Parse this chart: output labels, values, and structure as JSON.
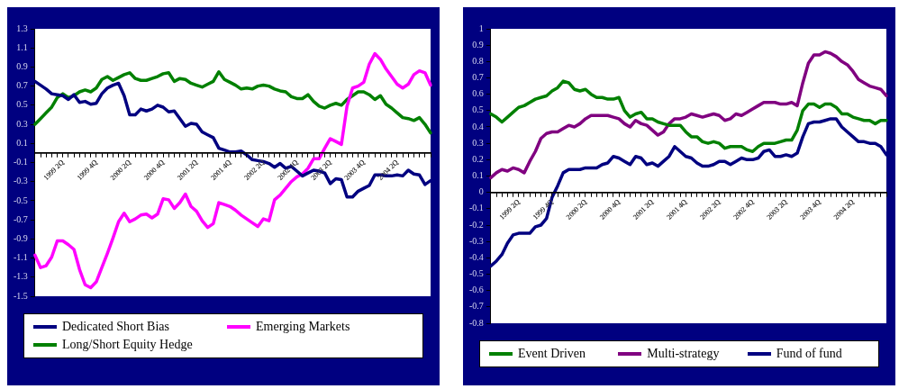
{
  "chart_data": [
    {
      "type": "line",
      "categories": [
        null,
        null,
        null,
        null,
        null,
        "1999 2Q",
        null,
        null,
        null,
        null,
        null,
        "1999 4Q",
        null,
        null,
        null,
        null,
        null,
        "2000 2Q",
        null,
        null,
        null,
        null,
        null,
        "2000 4Q",
        null,
        null,
        null,
        null,
        null,
        "2001 2Q",
        null,
        null,
        null,
        null,
        null,
        "2001 4Q",
        null,
        null,
        null,
        null,
        null,
        "2002 2Q",
        null,
        null,
        null,
        null,
        null,
        "2002 4Q",
        null,
        null,
        null,
        null,
        null,
        "2003 2Q",
        null,
        null,
        null,
        null,
        null,
        "2003 4Q",
        null,
        null,
        null,
        null,
        null,
        "2004 2Q",
        null,
        null,
        null,
        null,
        null,
        null
      ],
      "series": [
        {
          "name": "Dedicated Short Bias",
          "color": "#000080",
          "values": [
            0.75,
            0.71,
            0.67,
            0.62,
            0.61,
            0.6,
            0.56,
            0.61,
            0.53,
            0.54,
            0.51,
            0.52,
            0.62,
            0.68,
            0.71,
            0.73,
            0.6,
            0.4,
            0.4,
            0.46,
            0.44,
            0.46,
            0.5,
            0.48,
            0.43,
            0.44,
            0.36,
            0.28,
            0.31,
            0.3,
            0.22,
            0.19,
            0.16,
            0.05,
            0.03,
            0.01,
            0.01,
            0.02,
            -0.02,
            -0.07,
            -0.08,
            -0.09,
            -0.11,
            -0.15,
            -0.11,
            -0.16,
            -0.14,
            -0.19,
            -0.24,
            -0.21,
            -0.18,
            -0.19,
            -0.21,
            -0.32,
            -0.27,
            -0.28,
            -0.46,
            -0.46,
            -0.4,
            -0.37,
            -0.34,
            -0.23,
            -0.23,
            -0.24,
            -0.24,
            -0.23,
            -0.24,
            -0.18,
            -0.22,
            -0.23,
            -0.33,
            -0.29
          ]
        },
        {
          "name": "Emerging Markets",
          "color": "#ff00ff",
          "values": [
            -1.07,
            -1.2,
            -1.18,
            -1.09,
            -0.92,
            -0.92,
            -0.96,
            -1.01,
            -1.22,
            -1.38,
            -1.41,
            -1.35,
            -1.2,
            -1.05,
            -0.89,
            -0.72,
            -0.63,
            -0.72,
            -0.69,
            -0.65,
            -0.64,
            -0.68,
            -0.64,
            -0.48,
            -0.49,
            -0.58,
            -0.52,
            -0.43,
            -0.56,
            -0.61,
            -0.71,
            -0.78,
            -0.74,
            -0.52,
            -0.54,
            -0.56,
            -0.6,
            -0.65,
            -0.69,
            -0.73,
            -0.77,
            -0.69,
            -0.71,
            -0.49,
            -0.44,
            -0.37,
            -0.3,
            -0.25,
            -0.22,
            -0.16,
            -0.06,
            -0.06,
            0.05,
            0.15,
            0.12,
            0.09,
            0.49,
            0.68,
            0.7,
            0.74,
            0.93,
            1.04,
            0.98,
            0.88,
            0.8,
            0.72,
            0.68,
            0.72,
            0.82,
            0.86,
            0.84,
            0.71
          ]
        },
        {
          "name": "Long/Short Equity Hedge",
          "color": "#008000",
          "values": [
            0.3,
            0.36,
            0.42,
            0.48,
            0.58,
            0.62,
            0.58,
            0.6,
            0.64,
            0.66,
            0.64,
            0.68,
            0.77,
            0.8,
            0.76,
            0.79,
            0.82,
            0.84,
            0.78,
            0.76,
            0.76,
            0.78,
            0.8,
            0.83,
            0.84,
            0.75,
            0.78,
            0.77,
            0.73,
            0.71,
            0.69,
            0.72,
            0.75,
            0.85,
            0.77,
            0.74,
            0.71,
            0.67,
            0.68,
            0.67,
            0.7,
            0.71,
            0.7,
            0.67,
            0.65,
            0.64,
            0.59,
            0.57,
            0.57,
            0.61,
            0.54,
            0.49,
            0.47,
            0.5,
            0.52,
            0.5,
            0.56,
            0.6,
            0.64,
            0.64,
            0.61,
            0.56,
            0.6,
            0.51,
            0.47,
            0.42,
            0.37,
            0.36,
            0.34,
            0.37,
            0.3,
            0.21
          ]
        }
      ],
      "ylim": [
        -1.5,
        1.3
      ],
      "yticks": [
        -1.5,
        -1.3,
        -1.1,
        -0.9,
        -0.7,
        -0.5,
        -0.3,
        -0.1,
        0.1,
        0.3,
        0.5,
        0.7,
        0.9,
        1.1,
        1.3
      ],
      "legend": "bottom",
      "marker": "none"
    },
    {
      "type": "line",
      "categories": [
        null,
        null,
        null,
        null,
        null,
        "1999 2Q",
        null,
        null,
        null,
        null,
        null,
        "1999 4Q",
        null,
        null,
        null,
        null,
        null,
        "2000 2Q",
        null,
        null,
        null,
        null,
        null,
        "2000 4Q",
        null,
        null,
        null,
        null,
        null,
        "2001 2Q",
        null,
        null,
        null,
        null,
        null,
        "2001 4Q",
        null,
        null,
        null,
        null,
        null,
        "2002 2Q",
        null,
        null,
        null,
        null,
        null,
        "2002 4Q",
        null,
        null,
        null,
        null,
        null,
        "2003 2Q",
        null,
        null,
        null,
        null,
        null,
        "2003 4Q",
        null,
        null,
        null,
        null,
        null,
        "2004 2Q",
        null,
        null,
        null,
        null,
        null,
        null
      ],
      "series": [
        {
          "name": "Event Driven",
          "color": "#008000",
          "values": [
            0.48,
            0.46,
            0.43,
            0.46,
            0.49,
            0.52,
            0.53,
            0.55,
            0.57,
            0.58,
            0.59,
            0.62,
            0.64,
            0.68,
            0.67,
            0.63,
            0.62,
            0.63,
            0.6,
            0.58,
            0.58,
            0.57,
            0.57,
            0.58,
            0.5,
            0.46,
            0.48,
            0.49,
            0.45,
            0.45,
            0.43,
            0.42,
            0.41,
            0.41,
            0.41,
            0.37,
            0.34,
            0.34,
            0.31,
            0.3,
            0.31,
            0.3,
            0.27,
            0.28,
            0.28,
            0.28,
            0.26,
            0.25,
            0.28,
            0.3,
            0.3,
            0.3,
            0.31,
            0.32,
            0.32,
            0.38,
            0.5,
            0.54,
            0.54,
            0.52,
            0.54,
            0.54,
            0.52,
            0.48,
            0.48,
            0.46,
            0.45,
            0.44,
            0.44,
            0.42,
            0.44,
            0.44
          ]
        },
        {
          "name": "Multi-strategy",
          "color": "#800080",
          "values": [
            0.09,
            0.12,
            0.14,
            0.13,
            0.15,
            0.14,
            0.12,
            0.19,
            0.25,
            0.33,
            0.36,
            0.37,
            0.37,
            0.39,
            0.41,
            0.4,
            0.42,
            0.45,
            0.47,
            0.47,
            0.47,
            0.47,
            0.46,
            0.45,
            0.42,
            0.4,
            0.44,
            0.42,
            0.41,
            0.38,
            0.35,
            0.37,
            0.42,
            0.45,
            0.45,
            0.46,
            0.48,
            0.47,
            0.46,
            0.47,
            0.48,
            0.47,
            0.44,
            0.45,
            0.48,
            0.47,
            0.49,
            0.51,
            0.53,
            0.55,
            0.55,
            0.55,
            0.54,
            0.54,
            0.55,
            0.53,
            0.67,
            0.79,
            0.84,
            0.84,
            0.86,
            0.85,
            0.83,
            0.8,
            0.78,
            0.74,
            0.69,
            0.67,
            0.65,
            0.64,
            0.63,
            0.59
          ]
        },
        {
          "name": "Fund of fund",
          "color": "#000080",
          "values": [
            -0.45,
            -0.42,
            -0.38,
            -0.31,
            -0.26,
            -0.25,
            -0.25,
            -0.25,
            -0.21,
            -0.2,
            -0.16,
            -0.03,
            0.04,
            0.12,
            0.14,
            0.14,
            0.14,
            0.15,
            0.15,
            0.15,
            0.17,
            0.18,
            0.22,
            0.21,
            0.19,
            0.17,
            0.22,
            0.21,
            0.17,
            0.18,
            0.16,
            0.19,
            0.22,
            0.28,
            0.25,
            0.22,
            0.21,
            0.18,
            0.16,
            0.16,
            0.17,
            0.19,
            0.19,
            0.17,
            0.19,
            0.21,
            0.2,
            0.2,
            0.21,
            0.25,
            0.26,
            0.22,
            0.22,
            0.23,
            0.22,
            0.24,
            0.34,
            0.42,
            0.43,
            0.43,
            0.44,
            0.45,
            0.45,
            0.4,
            0.37,
            0.34,
            0.31,
            0.31,
            0.3,
            0.3,
            0.28,
            0.23
          ]
        }
      ],
      "ylim": [
        -0.8,
        1
      ],
      "yticks": [
        -0.8,
        -0.7,
        -0.6,
        -0.5,
        -0.4,
        -0.3,
        -0.2,
        -0.1,
        0,
        0.1,
        0.2,
        0.3,
        0.4,
        0.5,
        0.6,
        0.7,
        0.8,
        0.9,
        1
      ],
      "legend": "bottom",
      "marker": "none"
    }
  ]
}
